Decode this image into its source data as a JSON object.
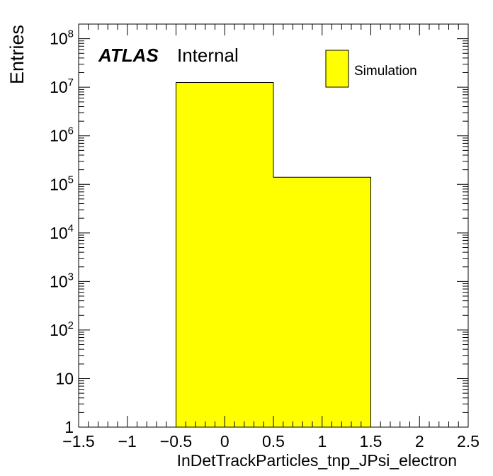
{
  "chart_data": {
    "type": "bar",
    "title": "",
    "xlabel": "InDetTrackParticles_tnp_JPsi_electron",
    "ylabel": "Entries",
    "xlim": [
      -1.5,
      2.5
    ],
    "ylim": [
      1,
      200000000
    ],
    "yscale": "log",
    "grid": false,
    "legend_position": "top-right",
    "experiment_label": "ATLAS",
    "status_label": "Internal",
    "x_ticks": [
      {
        "value": -1.5,
        "label": "−1.5"
      },
      {
        "value": -1,
        "label": "−1"
      },
      {
        "value": -0.5,
        "label": "−0.5"
      },
      {
        "value": 0,
        "label": "0"
      },
      {
        "value": 0.5,
        "label": "0.5"
      },
      {
        "value": 1,
        "label": "1"
      },
      {
        "value": 1.5,
        "label": "1.5"
      },
      {
        "value": 2,
        "label": "2"
      },
      {
        "value": 2.5,
        "label": "2.5"
      }
    ],
    "y_ticks": [
      {
        "value": 1,
        "base": "1",
        "exp": ""
      },
      {
        "value": 10,
        "base": "10",
        "exp": ""
      },
      {
        "value": 100,
        "base": "10",
        "exp": "2"
      },
      {
        "value": 1000,
        "base": "10",
        "exp": "3"
      },
      {
        "value": 10000,
        "base": "10",
        "exp": "4"
      },
      {
        "value": 100000,
        "base": "10",
        "exp": "5"
      },
      {
        "value": 1000000,
        "base": "10",
        "exp": "6"
      },
      {
        "value": 10000000,
        "base": "10",
        "exp": "7"
      },
      {
        "value": 100000000,
        "base": "10",
        "exp": "8"
      }
    ],
    "series": [
      {
        "name": "Simulation",
        "color": "#ffff00",
        "bins": [
          {
            "low": -0.5,
            "high": 0.5,
            "value": 12500000
          },
          {
            "low": 0.5,
            "high": 1.5,
            "value": 140000
          }
        ]
      }
    ]
  }
}
